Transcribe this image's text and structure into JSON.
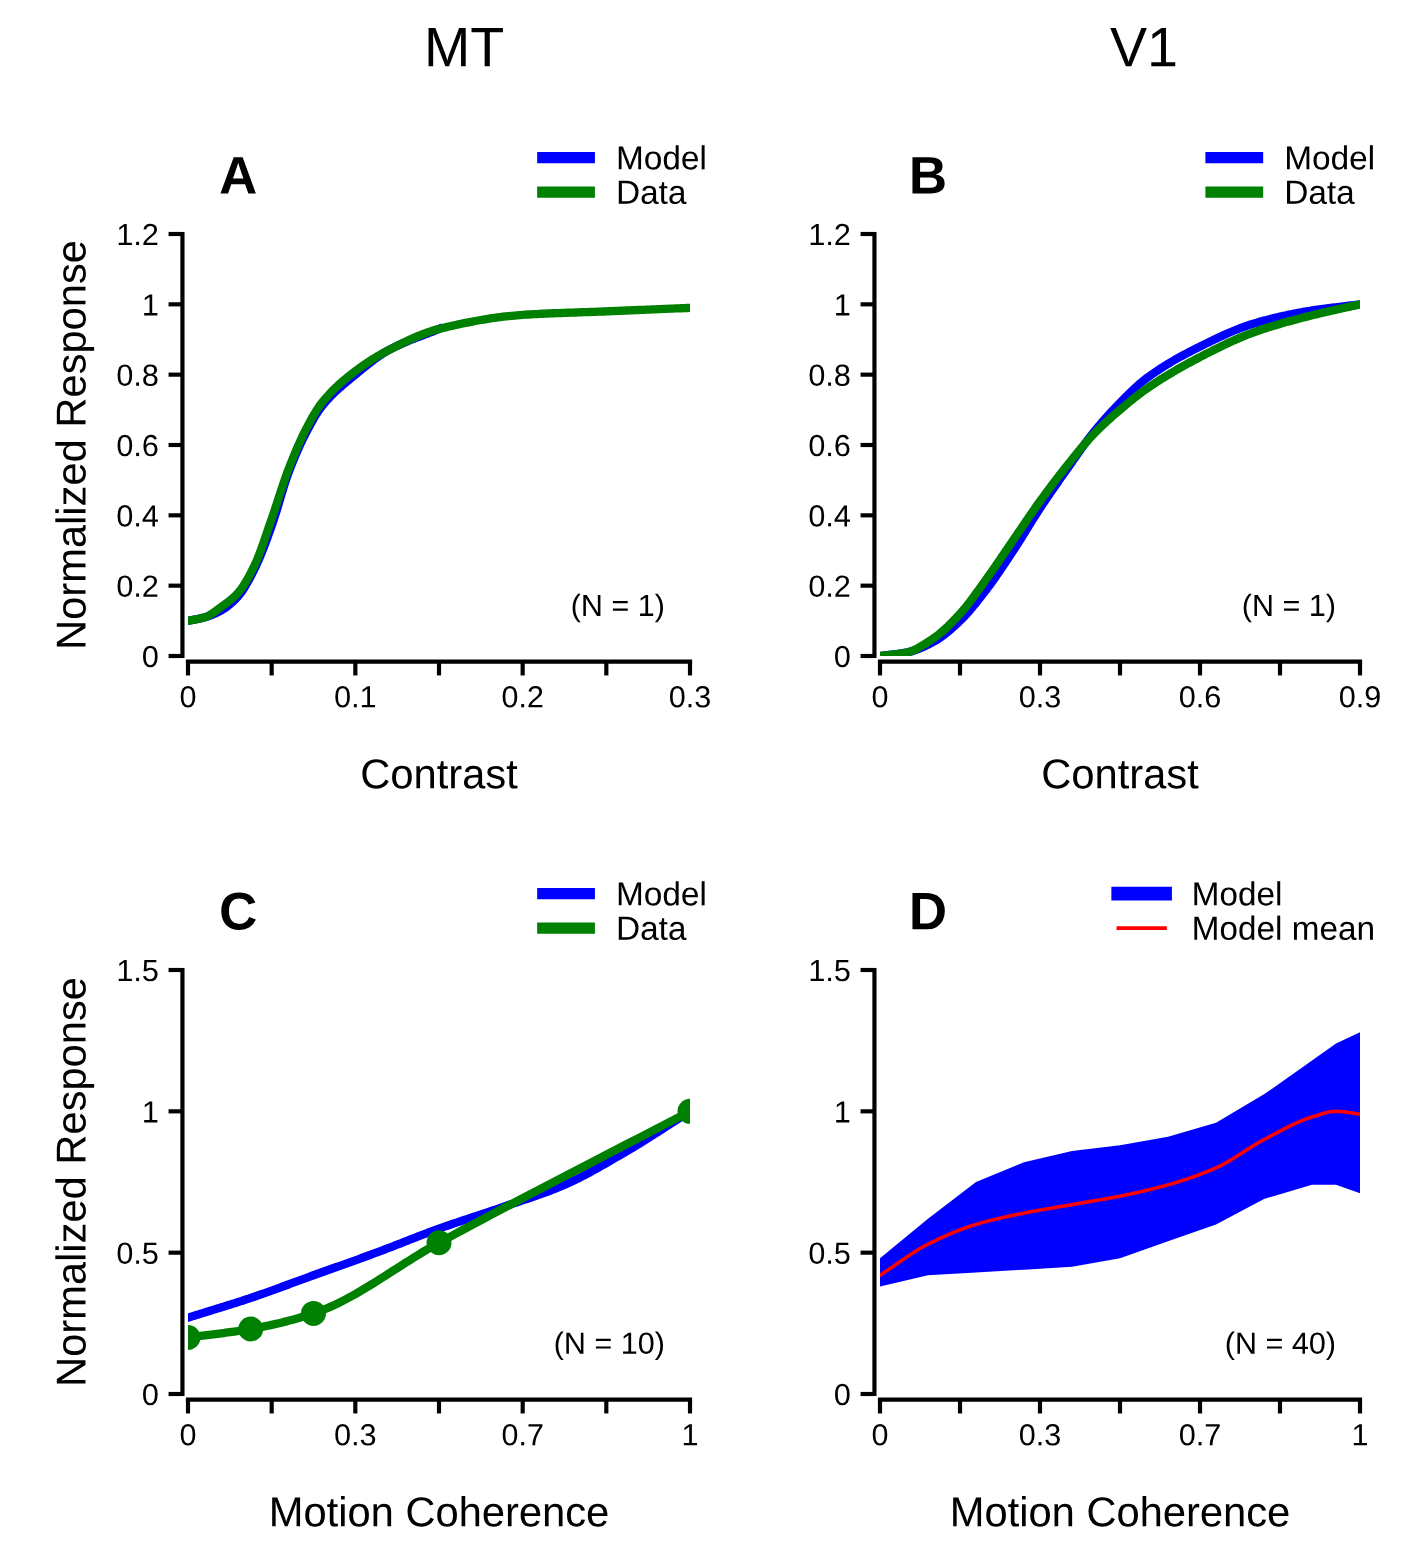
{
  "chart_data": [
    {
      "type": "line",
      "title": "MT",
      "subtitle": "A",
      "xlabel": "Contrast",
      "ylabel": "Normalized Response",
      "annotations": [
        "(N = 1)"
      ],
      "legend": "top right",
      "xlim": [
        0,
        0.3
      ],
      "xticks": [
        0,
        {
          "value": 0.05,
          "label": null
        },
        0.1,
        {
          "value": 0.15,
          "label": null
        },
        0.2,
        {
          "value": 0.25,
          "label": null
        },
        0.3
      ],
      "ylim": [
        0,
        1.2
      ],
      "yticks": [
        0,
        0.2,
        0.4,
        0.6,
        0.8,
        1,
        1.2
      ],
      "series": [
        {
          "name": "Model",
          "color": "#0000ff",
          "x": [
            0,
            0.01,
            0.02,
            0.03,
            0.04,
            0.05,
            0.06,
            0.07,
            0.08,
            0.1,
            0.12,
            0.15
          ],
          "values": [
            0.1,
            0.11,
            0.13,
            0.17,
            0.25,
            0.37,
            0.52,
            0.63,
            0.71,
            0.8,
            0.87,
            0.93
          ]
        },
        {
          "name": "Data",
          "color": "#008000",
          "x": [
            0,
            0.01,
            0.02,
            0.03,
            0.04,
            0.05,
            0.06,
            0.07,
            0.08,
            0.1,
            0.12,
            0.15,
            0.2,
            0.25,
            0.3
          ],
          "values": [
            0.1,
            0.11,
            0.14,
            0.18,
            0.26,
            0.39,
            0.53,
            0.64,
            0.72,
            0.81,
            0.87,
            0.93,
            0.97,
            0.98,
            0.99
          ]
        }
      ]
    },
    {
      "type": "line",
      "title": "V1",
      "subtitle": "B",
      "xlabel": "Contrast",
      "annotations": [
        "(N = 1)"
      ],
      "legend": "top right",
      "xlim": [
        0,
        0.9
      ],
      "xticks": [
        0,
        {
          "value": 0.15,
          "label": null
        },
        0.3,
        {
          "value": 0.45,
          "label": null
        },
        0.6,
        {
          "value": 0.75,
          "label": null
        },
        0.9
      ],
      "ylim": [
        0,
        1.2
      ],
      "yticks": [
        0,
        0.2,
        0.4,
        0.6,
        0.8,
        1,
        1.2
      ],
      "series": [
        {
          "name": "Model",
          "color": "#0000ff",
          "x": [
            0,
            0.05,
            0.1,
            0.15,
            0.2,
            0.25,
            0.3,
            0.35,
            0.4,
            0.45,
            0.5,
            0.6,
            0.7,
            0.8,
            0.9
          ],
          "values": [
            0,
            0.01,
            0.04,
            0.1,
            0.19,
            0.3,
            0.42,
            0.53,
            0.635,
            0.72,
            0.79,
            0.88,
            0.945,
            0.98,
            1
          ]
        },
        {
          "name": "Data",
          "color": "#008000",
          "x": [
            0,
            0.05,
            0.1,
            0.15,
            0.2,
            0.25,
            0.3,
            0.35,
            0.4,
            0.45,
            0.5,
            0.6,
            0.7,
            0.8,
            0.9
          ],
          "values": [
            0,
            0.01,
            0.05,
            0.12,
            0.22,
            0.33,
            0.44,
            0.54,
            0.63,
            0.7,
            0.76,
            0.85,
            0.92,
            0.965,
            1
          ]
        }
      ]
    },
    {
      "type": "line",
      "subtitle": "C",
      "xlabel": "Motion Coherence",
      "ylabel": "Normalized Response",
      "annotations": [
        "(N = 10)"
      ],
      "legend": "top right",
      "xlim": [
        0,
        1
      ],
      "xticks": [
        0,
        {
          "value": 0.1667,
          "label": null
        },
        {
          "value": 0.3333,
          "label": "0.3"
        },
        {
          "value": 0.5,
          "label": null
        },
        {
          "value": 0.6667,
          "label": "0.7"
        },
        {
          "value": 0.8333,
          "label": null
        },
        1
      ],
      "ylim": [
        0,
        1.5
      ],
      "yticks": [
        0,
        0.5,
        1,
        1.5
      ],
      "series": [
        {
          "name": "Model",
          "color": "#0000ff",
          "marker": "none",
          "x": [
            0,
            0.125,
            0.25,
            0.375,
            0.5,
            0.625,
            0.75,
            0.875,
            1
          ],
          "values": [
            0.27,
            0.34,
            0.42,
            0.5,
            0.585,
            0.66,
            0.74,
            0.86,
            1
          ]
        },
        {
          "name": "Data",
          "color": "#008000",
          "marker": "circle",
          "x": [
            0,
            0.125,
            0.25,
            0.5,
            1
          ],
          "values": [
            0.2,
            0.23,
            0.285,
            0.535,
            1
          ]
        }
      ]
    },
    {
      "type": "line",
      "subtitle": "D",
      "xlabel": "Motion Coherence",
      "annotations": [
        "(N = 40)"
      ],
      "legend": "top right",
      "xlim": [
        0,
        1
      ],
      "xticks": [
        0,
        {
          "value": 0.1667,
          "label": null
        },
        {
          "value": 0.3333,
          "label": "0.3"
        },
        {
          "value": 0.5,
          "label": null
        },
        {
          "value": 0.6667,
          "label": "0.7"
        },
        {
          "value": 0.8333,
          "label": null
        },
        1
      ],
      "ylim": [
        0,
        1.5
      ],
      "yticks": [
        0,
        0.5,
        1,
        1.5
      ],
      "series": [
        {
          "name": "Model",
          "color": "#0000ff",
          "type": "area",
          "x": [
            0,
            0.1,
            0.2,
            0.3,
            0.4,
            0.5,
            0.6,
            0.7,
            0.8,
            0.9,
            0.95,
            1
          ],
          "values": [
            null,
            null,
            null,
            null,
            null,
            null,
            null,
            null,
            null,
            null,
            null,
            null
          ],
          "lower": [
            0.38,
            0.42,
            0.43,
            0.44,
            0.45,
            0.48,
            0.54,
            0.6,
            0.69,
            0.74,
            0.74,
            0.71
          ],
          "upper": [
            0.48,
            0.62,
            0.75,
            0.82,
            0.86,
            0.88,
            0.91,
            0.96,
            1.06,
            1.18,
            1.24,
            1.28
          ]
        },
        {
          "name": "Model mean",
          "color": "#ff0000",
          "type": "line",
          "x": [
            0,
            0.1,
            0.2,
            0.3,
            0.4,
            0.5,
            0.6,
            0.7,
            0.8,
            0.9,
            0.95,
            1
          ],
          "values": [
            0.42,
            0.53,
            0.6,
            0.64,
            0.67,
            0.7,
            0.74,
            0.8,
            0.9,
            0.98,
            1.0,
            0.99
          ]
        }
      ]
    }
  ]
}
